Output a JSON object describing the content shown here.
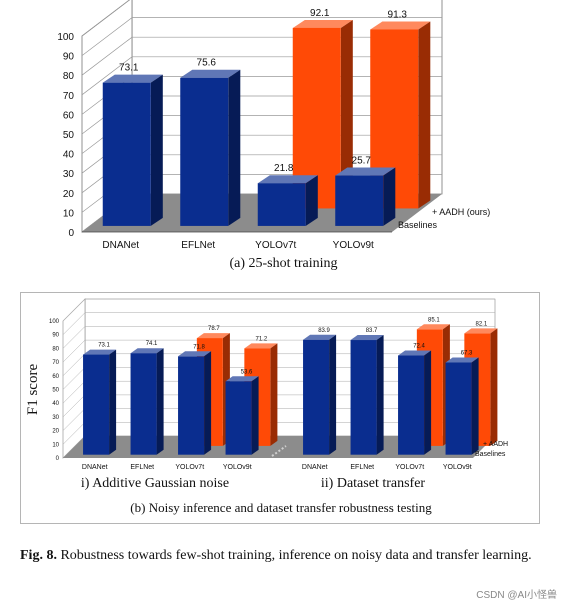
{
  "fig_a": {
    "caption": "(a) 25-shot training"
  },
  "fig_b": {
    "caption": "(b) Noisy inference and dataset transfer robustness testing",
    "ylabel": "F1 score",
    "sub_i": "i) Additive Gaussian noise",
    "sub_ii": "ii) Dataset transfer"
  },
  "figure": {
    "label": "Fig. 8.",
    "text": "Robustness towards few-shot training, inference on noisy data and transfer learning."
  },
  "watermark": "CSDN @AI小怪兽",
  "colors": {
    "baseline": "#0a2d8f",
    "aadh": "#ff4a06",
    "floor": "#8c8c8c"
  },
  "chart_data": [
    {
      "type": "bar",
      "categories": [
        "DNANet",
        "EFLNet",
        "YOLOv7t",
        "YOLOv9t"
      ],
      "series": [
        {
          "name": "Baselines",
          "values": [
            73.1,
            75.6,
            21.8,
            25.7
          ]
        },
        {
          "name": "+ AADH (ours)",
          "values": [
            null,
            null,
            92.1,
            91.3
          ]
        }
      ],
      "yticks": [
        0,
        10,
        20,
        30,
        40,
        50,
        60,
        70,
        80,
        90,
        100
      ],
      "ylim": [
        0,
        100
      ],
      "grid": true,
      "legend": "right, along depth axis"
    },
    {
      "type": "bar",
      "groups": [
        {
          "name": "i) Additive Gaussian noise",
          "categories": [
            "DNANet",
            "EFLNet",
            "YOLOv7t",
            "YOLOv9t"
          ],
          "series": [
            {
              "name": "Baselines",
              "values": [
                73.1,
                74.1,
                71.8,
                53.6
              ]
            },
            {
              "name": "+ AADH",
              "values": [
                null,
                null,
                78.7,
                71.2
              ]
            }
          ]
        },
        {
          "name": "ii) Dataset transfer",
          "categories": [
            "DNANet",
            "EFLNet",
            "YOLOv7t",
            "YOLOv9t"
          ],
          "series": [
            {
              "name": "Baselines",
              "values": [
                83.9,
                83.7,
                72.4,
                67.3
              ]
            },
            {
              "name": "+ AADH",
              "values": [
                null,
                null,
                85.1,
                82.1
              ]
            }
          ]
        }
      ],
      "ylabel": "F1 score",
      "yticks": [
        0,
        10,
        20,
        30,
        40,
        50,
        60,
        70,
        80,
        90,
        100
      ],
      "ylim": [
        0,
        100
      ],
      "grid": true,
      "legend": "right, along depth axis"
    }
  ]
}
